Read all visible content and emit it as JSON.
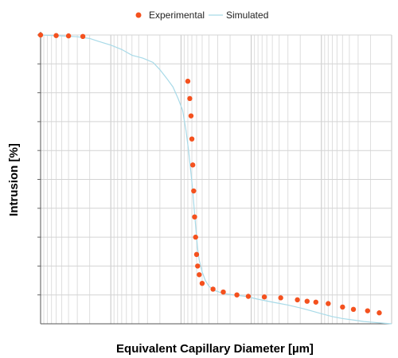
{
  "chart_data": {
    "type": "scatter",
    "xlabel": "Equivalent Capillary Diameter [µm]",
    "ylabel": "Intrusion [%]",
    "x_scale": "log",
    "xlim": [
      0.001,
      100
    ],
    "ylim": [
      0,
      100
    ],
    "grid": true,
    "legend_position": "top",
    "x": [
      100,
      60,
      40,
      25,
      0.8,
      0.75,
      0.72,
      0.7,
      0.68,
      0.66,
      0.64,
      0.62,
      0.6,
      0.58,
      0.55,
      0.5,
      0.35,
      0.25,
      0.16,
      0.11,
      0.065,
      0.038,
      0.022,
      0.016,
      0.012,
      0.008,
      0.005,
      0.0035,
      0.0022,
      0.0015
    ],
    "series": [
      {
        "name": "Experimental",
        "type": "scatter",
        "color": "#f4511e",
        "y": [
          100,
          99.8,
          99.7,
          99.5,
          84,
          78,
          72,
          64,
          55,
          46,
          37,
          30,
          24,
          20,
          17,
          14,
          12,
          11,
          10,
          9.5,
          9.3,
          9,
          8.3,
          7.8,
          7.5,
          7,
          5.8,
          5,
          4.5,
          3.8
        ]
      },
      {
        "name": "Simulated",
        "type": "line",
        "color": "#a8dae8",
        "x": [
          100,
          50,
          30,
          20,
          15,
          10,
          7,
          5,
          3.5,
          2.5,
          2,
          1.6,
          1.3,
          1.1,
          0.95,
          0.85,
          0.78,
          0.72,
          0.68,
          0.65,
          0.62,
          0.6,
          0.58,
          0.55,
          0.5,
          0.45,
          0.4,
          0.33,
          0.25,
          0.18,
          0.12,
          0.08,
          0.05,
          0.03,
          0.02,
          0.014,
          0.01,
          0.007,
          0.005,
          0.0035,
          0.0025,
          0.0018,
          0.0013,
          0.001
        ],
        "y": [
          100,
          99.7,
          99.4,
          98.8,
          97.8,
          96.5,
          95,
          93,
          92,
          90.5,
          88,
          85,
          82,
          78,
          74,
          67,
          60,
          52,
          46,
          40,
          34,
          30,
          26,
          22,
          18,
          15,
          13,
          11.5,
          10.5,
          10,
          9.5,
          8.5,
          7.5,
          6.5,
          5.5,
          4.5,
          3.5,
          2.5,
          1.8,
          1.3,
          0.8,
          0.5,
          0.2,
          0
        ]
      }
    ]
  }
}
